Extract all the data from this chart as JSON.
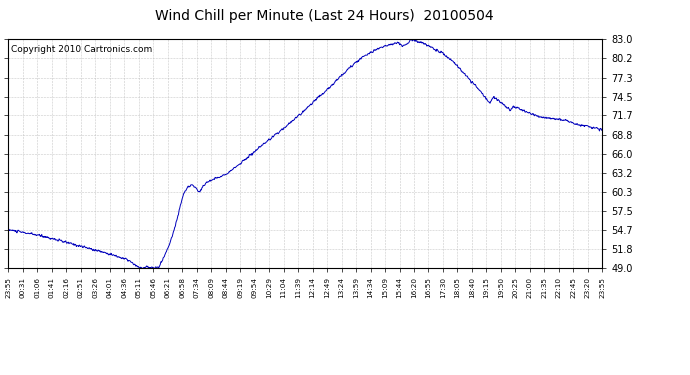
{
  "title": "Wind Chill per Minute (Last 24 Hours)  20100504",
  "copyright": "Copyright 2010 Cartronics.com",
  "yticks": [
    49.0,
    51.8,
    54.7,
    57.5,
    60.3,
    63.2,
    66.0,
    68.8,
    71.7,
    74.5,
    77.3,
    80.2,
    83.0
  ],
  "xtick_labels": [
    "23:55",
    "00:31",
    "01:06",
    "01:41",
    "02:16",
    "02:51",
    "03:26",
    "04:01",
    "04:36",
    "05:11",
    "05:46",
    "06:21",
    "06:58",
    "07:34",
    "08:09",
    "08:44",
    "09:19",
    "09:54",
    "10:29",
    "11:04",
    "11:39",
    "12:14",
    "12:49",
    "13:24",
    "13:59",
    "14:34",
    "15:09",
    "15:44",
    "16:20",
    "16:55",
    "17:30",
    "18:05",
    "18:40",
    "19:15",
    "19:50",
    "20:25",
    "21:00",
    "21:35",
    "22:10",
    "22:45",
    "23:20",
    "23:55"
  ],
  "ymin": 49.0,
  "ymax": 83.0,
  "line_color": "#0000bb",
  "bg_color": "#ffffff",
  "plot_bg_color": "#ffffff",
  "grid_color": "#bbbbbb",
  "title_fontsize": 10,
  "copyright_fontsize": 6.5
}
